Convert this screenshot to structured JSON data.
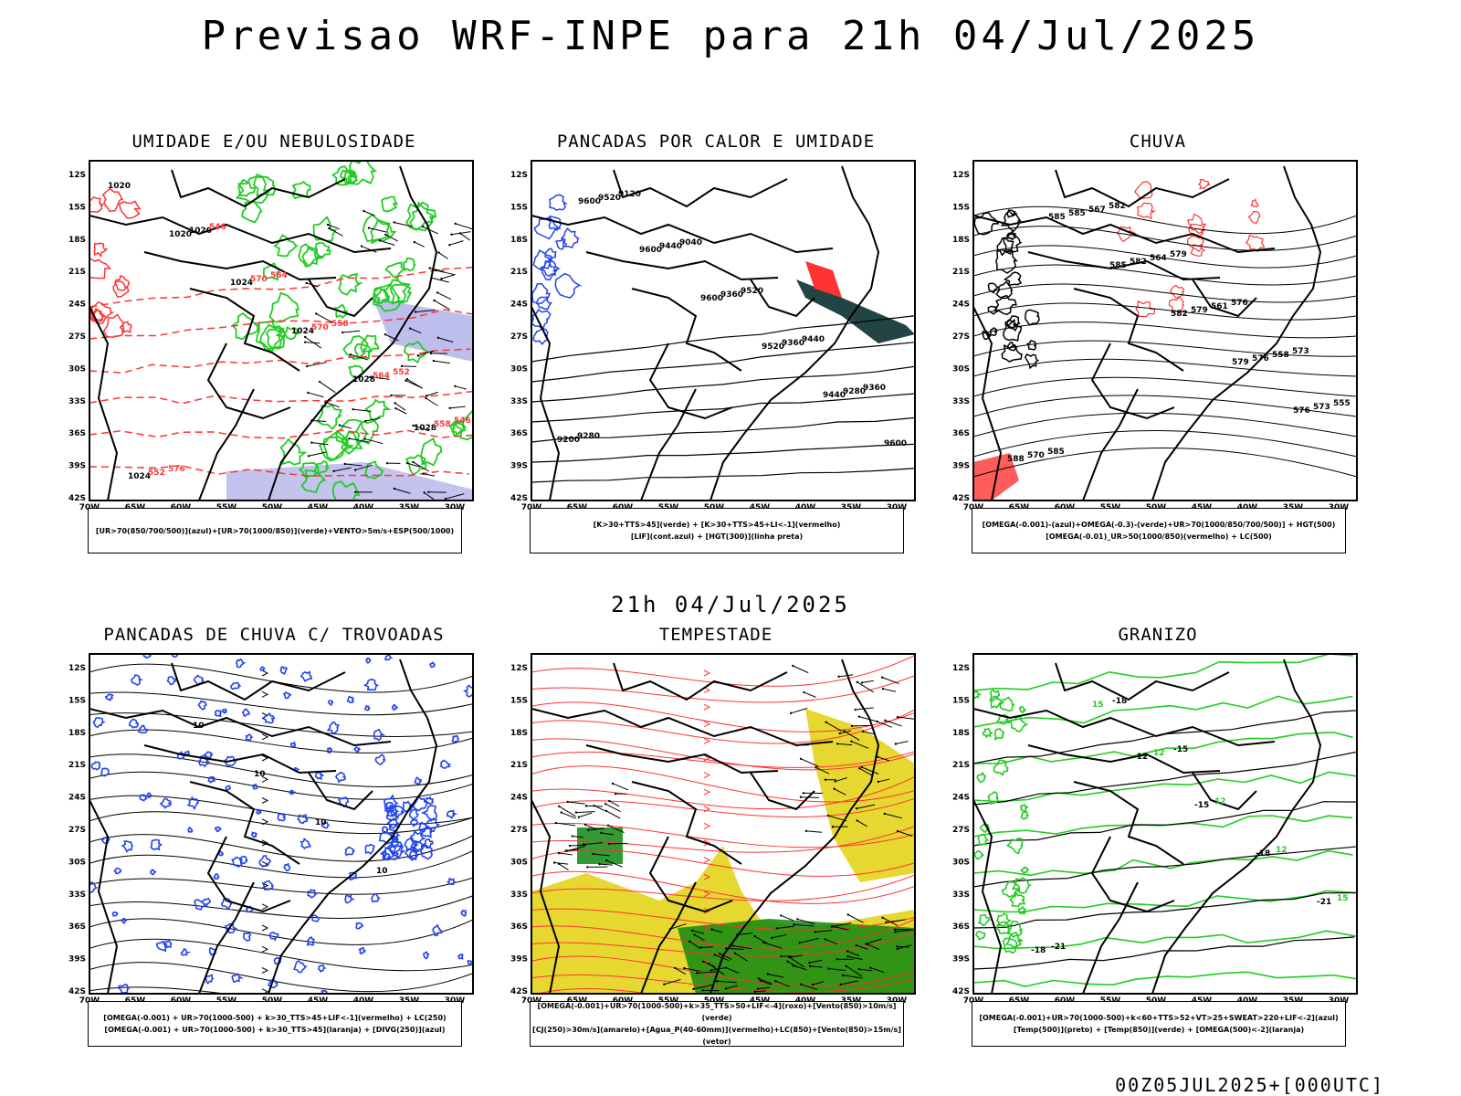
{
  "header": {
    "title": "Previsao WRF-INPE  para 21h 04/Jul/2025"
  },
  "middle_date": "21h 04/Jul/2025",
  "footer_run": "00Z05JUL2025+[000UTC]",
  "axes": {
    "lat_labels": [
      "12S",
      "15S",
      "18S",
      "21S",
      "24S",
      "27S",
      "30S",
      "33S",
      "36S",
      "39S",
      "42S"
    ],
    "lon_labels": [
      "70W",
      "65W",
      "60W",
      "55W",
      "50W",
      "45W",
      "40W",
      "35W",
      "30W"
    ]
  },
  "colors": {
    "red": "#ff3333",
    "green": "#22cc22",
    "blue": "#2244ee",
    "yellow": "#e6d831",
    "darkgreen": "#118811",
    "teal": "#224444",
    "purple": "#8888dd"
  },
  "panels": [
    {
      "id": "umidade",
      "title": "UMIDADE E/OU NEBULOSIDADE",
      "legend": [
        "[UR>70(850/700/500)](azul)+[UR>70(1000/850)](verde)+VENTO>5m/s+ESP(500/1000)"
      ],
      "labels": [
        "1020",
        "1020",
        "1024",
        "1024",
        "1028",
        "1028",
        "1024",
        "1020",
        "570",
        "570",
        "564",
        "558",
        "552",
        "546",
        "564",
        "558",
        "552",
        "546",
        "576"
      ]
    },
    {
      "id": "pancadas_calor",
      "title": "PANCADAS POR CALOR E UMIDADE",
      "legend": [
        "[K>30+TTS>45](verde) + [K>30+TTS>45+LI<-1](vermelho)",
        "[LIF](cont.azul) + [HGT(300)](linha preta)"
      ],
      "labels": [
        "9600",
        "9600",
        "9600",
        "9520",
        "9440",
        "9600",
        "9520",
        "9440",
        "9360",
        "9360",
        "9280",
        "9200",
        "9120",
        "9040",
        "9520",
        "9440",
        "9360",
        "9280"
      ]
    },
    {
      "id": "chuva",
      "title": "CHUVA",
      "legend": [
        "[OMEGA(-0.001)-(azul)+OMEGA(-0.3)-(verde)+UR>70(1000/850/700/500)] + HGT(500)",
        "[OMEGA(-0.01)_UR>50(1000/850)(vermelho) + LC(500)"
      ],
      "labels": [
        "585",
        "585",
        "582",
        "579",
        "576",
        "588",
        "585",
        "582",
        "579",
        "576",
        "573",
        "570",
        "567",
        "564",
        "561",
        "558",
        "555",
        "585",
        "582",
        "579",
        "576",
        "573"
      ]
    },
    {
      "id": "pancadas_trovoadas",
      "title": "PANCADAS DE CHUVA C/ TROVOADAS",
      "legend": [
        "[OMEGA(-0.001) + UR>70(1000-500) + k>30_TTS>45+LIF<-1](vermelho) + LC(250)",
        "[OMEGA(-0.001) + UR>70(1000-500) + k>30_TTS>45](laranja) + [DIVG(250)](azul)"
      ],
      "labels": [
        "10",
        "10",
        "10",
        "10"
      ]
    },
    {
      "id": "tempestade",
      "title": "TEMPESTADE",
      "legend": [
        "[OMEGA(-0.001)+UR>70(1000-500)+k>35_TTS>50+LIF<-4](roxo)+[Vento(850)>10m/s](verde)",
        "[CJ(250)>30m/s](amarelo)+[Agua_P(40-60mm)](vermelho)+LC(850)+[Vento(850)>15m/s](vetor)"
      ],
      "labels": []
    },
    {
      "id": "granizo",
      "title": "GRANIZO",
      "legend": [
        "[OMEGA(-0.001)+UR>70(1000-500)+k<60+TTS>52+VT>25+SWEAT>220+LIF<-2](azul)",
        "[Temp(500)](preto) + [Temp(850)](verde) + [OMEGA(500)<-2](laranja)"
      ],
      "labels": [
        "-12",
        "-15",
        "-18",
        "-21",
        "-18",
        "15",
        "12",
        "12",
        "12",
        "15",
        "-21",
        "-18",
        "-15"
      ]
    }
  ]
}
